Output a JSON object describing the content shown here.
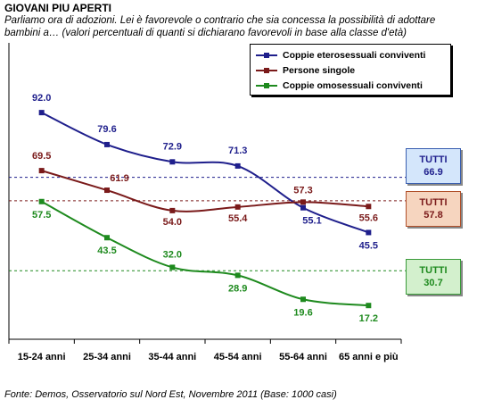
{
  "header": {
    "title": "GIOVANI PIU APERTI",
    "subtitle": "Parliamo ora di adozioni. Lei è favorevole o contrario che sia concessa la possibilità di adottare bambini a… (valori percentuali di quanti si dichiarano favorevoli in base alla classe d'età)"
  },
  "footer": {
    "source": "Fonte: Demos, Osservatorio sul Nord Est, Novembre  2011 (Base: 1000 casi)"
  },
  "chart_data": {
    "type": "line",
    "categories": [
      "15-24 anni",
      "25-34 anni",
      "35-44 anni",
      "45-54 anni",
      "55-64 anni",
      "65 anni e più"
    ],
    "ylim": [
      10,
      100
    ],
    "grid": false,
    "legend": "top-right",
    "series": [
      {
        "name": "Coppie eterosessuali conviventi",
        "color": "#1f1f8c",
        "values": [
          92.0,
          79.6,
          72.9,
          71.3,
          55.1,
          45.5
        ],
        "total": 66.9
      },
      {
        "name": "Persone singole",
        "color": "#7a1a1a",
        "values": [
          69.5,
          61.9,
          54.0,
          55.4,
          57.3,
          55.6
        ],
        "total": 57.8
      },
      {
        "name": "Coppie omosessuali conviventi",
        "color": "#1e8a1e",
        "values": [
          57.5,
          43.5,
          32.0,
          28.9,
          19.6,
          17.2
        ],
        "total": 30.7
      }
    ],
    "totals": {
      "label": "TUTTI",
      "boxes": [
        {
          "value": "66.9",
          "fill": "#d4e6fb",
          "border": "#3a5fb0"
        },
        {
          "value": "57.8",
          "fill": "#f6d5bf",
          "border": "#b0502a"
        },
        {
          "value": "30.7",
          "fill": "#d3f0cd",
          "border": "#3a9a3a"
        }
      ]
    }
  }
}
